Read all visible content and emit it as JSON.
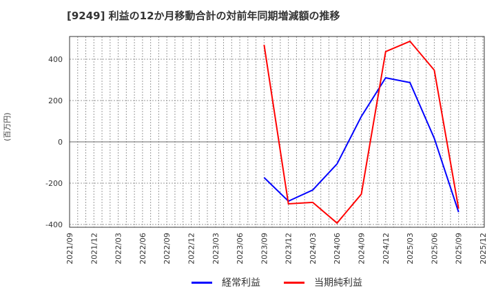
{
  "title": "[9249]  利益の12か月移動合計の対前年同期増減額の推移",
  "y_axis_label": "(百万円)",
  "chart_data": {
    "type": "line",
    "title": "[9249] 利益の12か月移動合計の対前年同期増減額の推移",
    "xlabel": "",
    "ylabel": "(百万円)",
    "ylim": [
      -410,
      510
    ],
    "yticks": [
      400,
      200,
      0,
      -200,
      -400
    ],
    "x_tick_labels": [
      "2021/09",
      "2021/12",
      "2022/03",
      "2022/06",
      "2022/09",
      "2022/12",
      "2023/03",
      "2023/06",
      "2023/09",
      "2023/12",
      "2024/03",
      "2024/06",
      "2024/09",
      "2024/12",
      "2025/03",
      "2025/06",
      "2025/09",
      "2025/12"
    ],
    "grid": true,
    "legend_position": "bottom",
    "x": [
      "2023/09",
      "2023/12",
      "2024/03",
      "2024/06",
      "2024/09",
      "2024/12",
      "2025/03",
      "2025/06",
      "2025/09"
    ],
    "series": [
      {
        "name": "経常利益",
        "color": "#0000ff",
        "values": [
          -173,
          -287,
          -233,
          -107,
          123,
          310,
          287,
          17,
          -340
        ]
      },
      {
        "name": "当期純利益",
        "color": "#ff0000",
        "values": [
          470,
          -300,
          -293,
          -393,
          -253,
          437,
          487,
          347,
          -323
        ]
      }
    ]
  },
  "legend": [
    {
      "label": "経常利益",
      "color": "#0000ff"
    },
    {
      "label": "当期純利益",
      "color": "#ff0000"
    }
  ]
}
